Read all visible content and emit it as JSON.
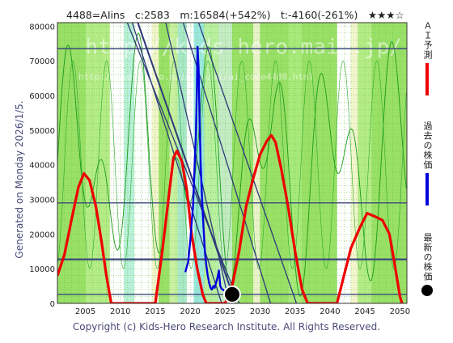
{
  "header": {
    "title": "4488=AIins　c:2583　m:16584(+542%)　t:-4160(-261%)　★★★☆"
  },
  "side_note": "Generated on Monday 2026/1/5.",
  "footer": {
    "copyright": "Copyright (c) Kids-Hero Research Institute. All Rights Reserved."
  },
  "watermark": {
    "text": "http://kids-hero.main.jp/",
    "sub": "http://kids-hero.main.jp/ai/ai_code4488.html"
  },
  "legend": {
    "ai": {
      "label": "ＡＩ予測",
      "color": "#ee0000"
    },
    "past": {
      "label": "過去の株価",
      "color": "#0000dd"
    },
    "latest": {
      "label": "最新の株価",
      "color": "#000000"
    }
  },
  "chart_data": {
    "type": "line",
    "xlim": [
      2001,
      2051
    ],
    "ylim": [
      0,
      81000
    ],
    "x_ticks": [
      2005,
      2010,
      2015,
      2020,
      2025,
      2030,
      2035,
      2040,
      2045,
      2050
    ],
    "y_ticks": [
      0,
      10000,
      20000,
      30000,
      40000,
      50000,
      60000,
      70000,
      80000
    ],
    "grid": true,
    "horizontal_levels": [
      73500,
      29000,
      12700,
      2583
    ],
    "series": [
      {
        "name": "ＡＩ予測",
        "color": "#ee0000",
        "points": [
          [
            2001,
            8000
          ],
          [
            2002,
            14000
          ],
          [
            2003,
            24000
          ],
          [
            2004,
            33500
          ],
          [
            2004.8,
            37500
          ],
          [
            2005.6,
            35500
          ],
          [
            2006.5,
            28000
          ],
          [
            2007.3,
            18000
          ],
          [
            2008,
            8000
          ],
          [
            2008.7,
            0
          ],
          [
            2015,
            0
          ],
          [
            2016,
            15000
          ],
          [
            2017,
            32000
          ],
          [
            2017.6,
            42000
          ],
          [
            2018.1,
            44000
          ],
          [
            2018.8,
            41000
          ],
          [
            2019.5,
            33000
          ],
          [
            2020.2,
            20000
          ],
          [
            2021,
            10000
          ],
          [
            2021.8,
            2500
          ],
          [
            2022.3,
            0
          ],
          [
            2025,
            0
          ],
          [
            2026,
            5000
          ],
          [
            2027,
            15000
          ],
          [
            2028,
            28000
          ],
          [
            2029,
            36000
          ],
          [
            2030,
            43000
          ],
          [
            2031,
            47000
          ],
          [
            2031.6,
            48500
          ],
          [
            2032.2,
            46500
          ],
          [
            2033,
            39000
          ],
          [
            2034,
            28000
          ],
          [
            2035,
            15000
          ],
          [
            2036,
            4000
          ],
          [
            2036.8,
            0
          ],
          [
            2041,
            0
          ],
          [
            2042,
            8000
          ],
          [
            2043,
            16000
          ],
          [
            2044.3,
            22000
          ],
          [
            2045.3,
            26000
          ],
          [
            2046.5,
            25000
          ],
          [
            2047.5,
            24000
          ],
          [
            2048.5,
            20000
          ],
          [
            2049.2,
            12000
          ],
          [
            2050,
            2000
          ],
          [
            2050.3,
            0
          ]
        ]
      },
      {
        "name": "過去の株価",
        "color": "#0000dd",
        "points": [
          [
            2019.3,
            9000
          ],
          [
            2019.7,
            12000
          ],
          [
            2020,
            18000
          ],
          [
            2020.4,
            28000
          ],
          [
            2020.6,
            38000
          ],
          [
            2020.8,
            48000
          ],
          [
            2020.95,
            62000
          ],
          [
            2021.05,
            74000
          ],
          [
            2021.2,
            68000
          ],
          [
            2021.35,
            52000
          ],
          [
            2021.5,
            40000
          ],
          [
            2021.7,
            30000
          ],
          [
            2021.9,
            22000
          ],
          [
            2022.1,
            15000
          ],
          [
            2022.3,
            11000
          ],
          [
            2022.5,
            8000
          ],
          [
            2022.7,
            6000
          ],
          [
            2022.9,
            4500
          ],
          [
            2023.1,
            4000
          ],
          [
            2023.3,
            5000
          ],
          [
            2023.5,
            4500
          ],
          [
            2023.7,
            6000
          ],
          [
            2023.9,
            7500
          ],
          [
            2024.1,
            9500
          ],
          [
            2024.3,
            5000
          ],
          [
            2024.5,
            4200
          ],
          [
            2024.8,
            3800
          ],
          [
            2025.1,
            3200
          ],
          [
            2025.4,
            2900
          ],
          [
            2025.8,
            2700
          ],
          [
            2026,
            2583
          ]
        ]
      }
    ],
    "latest_point": {
      "x": 2026,
      "y": 2583
    },
    "trend_lines": [
      [
        [
          2011,
          81000
        ],
        [
          2027,
          0
        ]
      ],
      [
        [
          2012.5,
          81000
        ],
        [
          2026.5,
          0
        ]
      ],
      [
        [
          2016.5,
          81000
        ],
        [
          2025.6,
          0
        ]
      ],
      [
        [
          2019,
          81000
        ],
        [
          2031.5,
          0
        ]
      ],
      [
        [
          2021.2,
          81000
        ],
        [
          2035.2,
          0
        ]
      ],
      [
        [
          2011.7,
          81000
        ],
        [
          2024.5,
          0
        ]
      ]
    ]
  }
}
